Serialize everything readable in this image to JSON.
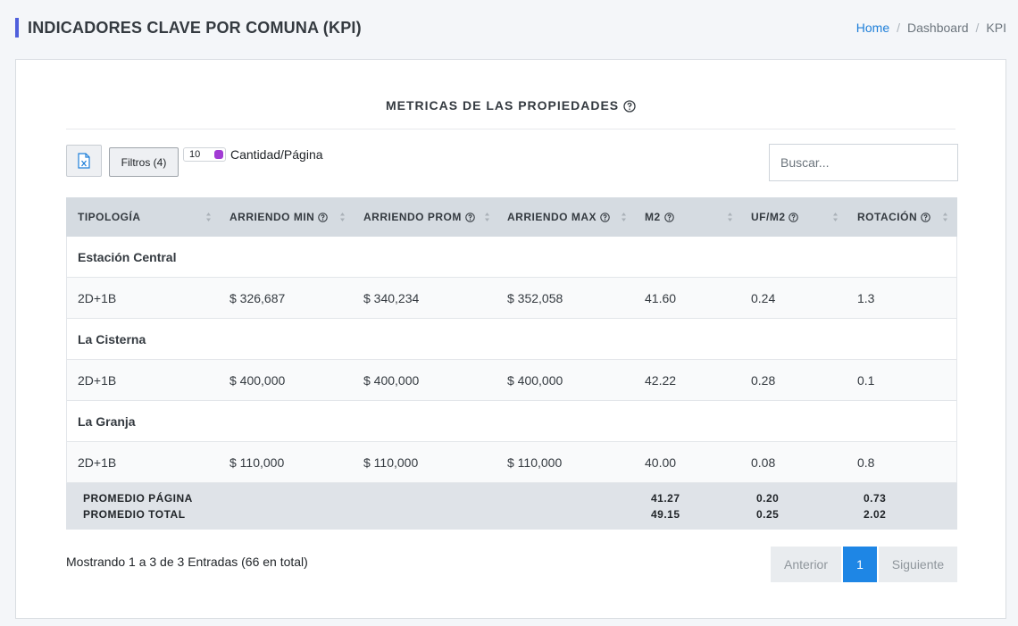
{
  "header": {
    "title": "INDICADORES CLAVE POR COMUNA (KPI)",
    "breadcrumb": [
      "Home",
      "Dashboard",
      "KPI"
    ]
  },
  "card": {
    "title": "METRICAS DE LAS PROPIEDADES"
  },
  "toolbar": {
    "filters_label": "Filtros (4)",
    "page_size_value": "10",
    "page_size_label": "Cantidad/Página",
    "search_placeholder": "Buscar..."
  },
  "table": {
    "columns": [
      "TIPOLOGÍA",
      "ARRIENDO MIN",
      "ARRIENDO PROM",
      "ARRIENDO MAX",
      "M2",
      "UF/M2",
      "ROTACIÓN"
    ],
    "groups": [
      {
        "name": "Estación Central",
        "row": [
          "2D+1B",
          "$ 326,687",
          "$ 340,234",
          "$ 352,058",
          "41.60",
          "0.24",
          "1.3"
        ]
      },
      {
        "name": "La Cisterna",
        "row": [
          "2D+1B",
          "$ 400,000",
          "$ 400,000",
          "$ 400,000",
          "42.22",
          "0.28",
          "0.1"
        ]
      },
      {
        "name": "La Granja",
        "row": [
          "2D+1B",
          "$ 110,000",
          "$ 110,000",
          "$ 110,000",
          "40.00",
          "0.08",
          "0.8"
        ]
      }
    ],
    "footer": {
      "page_label": "PROMEDIO PÁGINA",
      "total_label": "PROMEDIO TOTAL",
      "page_values": [
        "41.27",
        "0.20",
        "0.73"
      ],
      "total_values": [
        "49.15",
        "0.25",
        "2.02"
      ]
    }
  },
  "footer": {
    "info": "Mostrando 1 a 3 de 3 Entradas (66 en total)",
    "prev": "Anterior",
    "current": "1",
    "next": "Siguiente"
  },
  "colors": {
    "accent": "#4f5fdc",
    "link": "#1e7fd9",
    "active_page": "#1e86e5",
    "header_bg": "#d5dbe1"
  }
}
